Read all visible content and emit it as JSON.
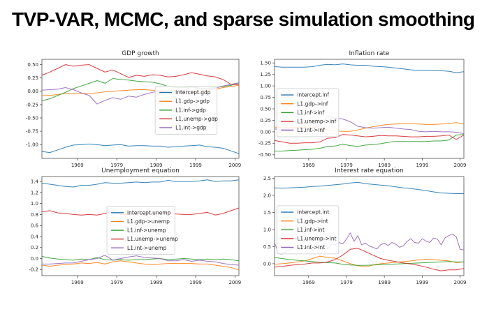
{
  "title": "TVP-VAR, MCMC, and sparse simulation smoothing",
  "colors": {
    "blue": "#1f77b4",
    "orange": "#ff7f0e",
    "green": "#2ca02c",
    "red": "#d62728",
    "purple": "#9467bd",
    "axis": "#4d4d4d",
    "tick_text": "#262626",
    "legend_border": "#cccccc",
    "background": "#ffffff"
  },
  "chart_data": [
    {
      "type": "line",
      "title": "GDP growth",
      "xlim": [
        1960,
        2010
      ],
      "xticks": [
        "1969",
        "1979",
        "1989",
        "1999",
        "2009"
      ],
      "x": [
        1960,
        1962,
        1964,
        1966,
        1968,
        1970,
        1972,
        1974,
        1976,
        1978,
        1980,
        1982,
        1984,
        1986,
        1988,
        1990,
        1992,
        1994,
        1996,
        1998,
        2000,
        2002,
        2004,
        2006,
        2008,
        2010
      ],
      "ylim": [
        -1.26,
        0.6
      ],
      "yticks": [
        0.5,
        0.25,
        0.0,
        -0.25,
        -0.5,
        -0.75,
        -1.0
      ],
      "ytick_labels": [
        "0.50",
        "0.25",
        "0.00",
        "-0.25",
        "-0.50",
        "-0.75",
        "-1.00"
      ],
      "grid": false,
      "legend": {
        "fx": 0.575,
        "fy": 0.27
      },
      "series": [
        {
          "name": "intercept.gdp",
          "color": "#1f77b4",
          "values": [
            -1.13,
            -1.15,
            -1.1,
            -1.05,
            -1.01,
            -1.0,
            -0.99,
            -1.0,
            -1.02,
            -1.01,
            -1.0,
            -1.03,
            -1.02,
            -1.02,
            -1.03,
            -1.03,
            -1.05,
            -1.04,
            -1.03,
            -1.02,
            -1.01,
            -1.04,
            -1.05,
            -1.07,
            -1.12,
            -1.17
          ]
        },
        {
          "name": "L1.gdp->gdp",
          "color": "#ff7f0e",
          "values": [
            -0.08,
            -0.08,
            -0.06,
            -0.04,
            -0.05,
            -0.04,
            -0.04,
            -0.03,
            -0.01,
            0.0,
            0.01,
            0.02,
            0.03,
            0.03,
            0.02,
            0.01,
            0.01,
            0.01,
            0.01,
            0.0,
            0.0,
            0.02,
            0.04,
            0.07,
            0.09,
            0.11
          ]
        },
        {
          "name": "L1.inf->gdp",
          "color": "#2ca02c",
          "values": [
            -0.18,
            -0.14,
            -0.08,
            -0.02,
            0.05,
            0.1,
            0.15,
            0.2,
            0.15,
            0.24,
            0.22,
            0.21,
            0.19,
            0.18,
            0.17,
            0.14,
            0.09,
            0.07,
            0.07,
            0.08,
            0.06,
            0.06,
            0.07,
            0.09,
            0.11,
            0.16
          ]
        },
        {
          "name": "L1.unemp->gdp",
          "color": "#d62728",
          "values": [
            0.3,
            0.36,
            0.43,
            0.5,
            0.47,
            0.49,
            0.5,
            0.43,
            0.36,
            0.4,
            0.33,
            0.26,
            0.3,
            0.28,
            0.31,
            0.3,
            0.27,
            0.28,
            0.31,
            0.35,
            0.32,
            0.29,
            0.27,
            0.22,
            0.13,
            0.12
          ]
        },
        {
          "name": "L1.int->gdp",
          "color": "#9467bd",
          "values": [
            0.02,
            0.03,
            0.04,
            0.07,
            0.03,
            -0.03,
            -0.08,
            -0.24,
            -0.17,
            -0.12,
            -0.15,
            -0.09,
            -0.11,
            -0.06,
            -0.02,
            0.0,
            -0.01,
            -0.01,
            0.01,
            0.09,
            0.04,
            0.04,
            0.06,
            0.1,
            0.13,
            0.16
          ]
        }
      ]
    },
    {
      "type": "line",
      "title": "Inflation rate",
      "xlim": [
        1960,
        2010
      ],
      "xticks": [
        "1969",
        "1979",
        "1989",
        "1999",
        "2009"
      ],
      "x": [
        1960,
        1962,
        1964,
        1966,
        1968,
        1970,
        1972,
        1974,
        1976,
        1978,
        1980,
        1982,
        1984,
        1986,
        1988,
        1990,
        1992,
        1994,
        1996,
        1998,
        2000,
        2002,
        2004,
        2006,
        2008,
        2010
      ],
      "ylim": [
        -0.58,
        1.58
      ],
      "yticks": [
        1.5,
        1.25,
        1.0,
        0.75,
        0.5,
        0.25,
        0.0,
        -0.25,
        -0.5
      ],
      "ytick_labels": [
        "1.50",
        "1.25",
        "1.00",
        "0.75",
        "0.50",
        "0.25",
        "0.00",
        "-0.25",
        "-0.50"
      ],
      "grid": false,
      "legend": {
        "fx": 0.012,
        "fy": 0.295
      },
      "series": [
        {
          "name": "intercept.inf",
          "color": "#1f77b4",
          "values": [
            1.42,
            1.41,
            1.41,
            1.41,
            1.41,
            1.42,
            1.45,
            1.47,
            1.46,
            1.48,
            1.46,
            1.45,
            1.45,
            1.43,
            1.42,
            1.41,
            1.39,
            1.37,
            1.35,
            1.34,
            1.34,
            1.33,
            1.33,
            1.32,
            1.29,
            1.31
          ]
        },
        {
          "name": "L1.gdp->inf",
          "color": "#ff7f0e",
          "values": [
            0.1,
            0.1,
            0.1,
            0.1,
            0.1,
            0.1,
            0.07,
            0.04,
            0.02,
            0.01,
            0.01,
            0.04,
            0.08,
            0.11,
            0.14,
            0.16,
            0.17,
            0.18,
            0.18,
            0.17,
            0.16,
            0.16,
            0.17,
            0.18,
            0.2,
            0.17
          ]
        },
        {
          "name": "L1.inf->inf",
          "color": "#2ca02c",
          "values": [
            -0.42,
            -0.42,
            -0.41,
            -0.4,
            -0.39,
            -0.38,
            -0.36,
            -0.32,
            -0.31,
            -0.27,
            -0.3,
            -0.32,
            -0.29,
            -0.28,
            -0.26,
            -0.23,
            -0.21,
            -0.21,
            -0.21,
            -0.21,
            -0.21,
            -0.2,
            -0.2,
            -0.18,
            -0.07,
            -0.06
          ]
        },
        {
          "name": "L1.unemp->inf",
          "color": "#d62728",
          "values": [
            -0.19,
            -0.22,
            -0.25,
            -0.25,
            -0.24,
            -0.24,
            -0.22,
            -0.14,
            -0.13,
            -0.06,
            -0.07,
            -0.09,
            -0.11,
            -0.1,
            -0.08,
            -0.09,
            -0.09,
            -0.1,
            -0.11,
            -0.11,
            -0.1,
            -0.1,
            -0.09,
            -0.07,
            -0.17,
            -0.07
          ]
        },
        {
          "name": "L1.int->inf",
          "color": "#9467bd",
          "values": [
            0.06,
            0.05,
            0.06,
            0.06,
            0.06,
            0.07,
            0.13,
            0.34,
            0.3,
            0.28,
            0.22,
            0.12,
            0.09,
            0.08,
            0.09,
            0.1,
            0.08,
            0.06,
            0.05,
            0.01,
            0.0,
            0.01,
            0.0,
            0.0,
            -0.01,
            -0.04
          ]
        }
      ]
    },
    {
      "type": "line",
      "title": "Unemployment equation",
      "xlim": [
        1960,
        2010
      ],
      "xticks": [
        "1969",
        "1979",
        "1989",
        "1999",
        "2009"
      ],
      "x": [
        1960,
        1962,
        1964,
        1966,
        1968,
        1970,
        1972,
        1974,
        1976,
        1978,
        1980,
        1982,
        1984,
        1986,
        1988,
        1990,
        1992,
        1994,
        1996,
        1998,
        2000,
        2002,
        2004,
        2006,
        2008,
        2010
      ],
      "ylim": [
        -0.31,
        1.49
      ],
      "yticks": [
        1.4,
        1.2,
        1.0,
        0.8,
        0.6,
        0.4,
        0.2,
        0.0,
        -0.2
      ],
      "ytick_labels": [
        "1.4",
        "1.2",
        "1.0",
        "0.8",
        "0.6",
        "0.4",
        "0.2",
        "0.0",
        "-0.2"
      ],
      "grid": false,
      "legend": {
        "fx": 0.33,
        "fy": 0.3
      },
      "series": [
        {
          "name": "intercept.unemp",
          "color": "#1f77b4",
          "values": [
            1.37,
            1.35,
            1.33,
            1.31,
            1.3,
            1.33,
            1.33,
            1.35,
            1.38,
            1.37,
            1.37,
            1.38,
            1.39,
            1.38,
            1.39,
            1.39,
            1.42,
            1.4,
            1.4,
            1.4,
            1.41,
            1.43,
            1.4,
            1.41,
            1.41,
            1.43
          ]
        },
        {
          "name": "L1.gdp->unemp",
          "color": "#ff7f0e",
          "values": [
            -0.12,
            -0.14,
            -0.12,
            -0.11,
            -0.1,
            -0.08,
            -0.09,
            -0.07,
            -0.1,
            -0.06,
            -0.04,
            -0.06,
            -0.08,
            -0.1,
            -0.11,
            -0.1,
            -0.09,
            -0.09,
            -0.09,
            -0.09,
            -0.1,
            -0.1,
            -0.12,
            -0.14,
            -0.16,
            -0.21
          ]
        },
        {
          "name": "L1.inf->unemp",
          "color": "#2ca02c",
          "values": [
            0.04,
            0.01,
            -0.01,
            -0.02,
            -0.03,
            -0.01,
            -0.02,
            0.02,
            -0.02,
            -0.03,
            -0.02,
            -0.03,
            -0.02,
            -0.02,
            -0.01,
            0.0,
            -0.02,
            -0.01,
            0.0,
            -0.01,
            -0.02,
            -0.01,
            -0.02,
            -0.01,
            -0.02,
            -0.04
          ]
        },
        {
          "name": "L1.unemp->unemp",
          "color": "#d62728",
          "values": [
            0.85,
            0.87,
            0.83,
            0.82,
            0.8,
            0.79,
            0.8,
            0.79,
            0.82,
            0.85,
            0.8,
            0.8,
            0.82,
            0.81,
            0.82,
            0.83,
            0.84,
            0.81,
            0.8,
            0.8,
            0.82,
            0.84,
            0.79,
            0.82,
            0.87,
            0.92
          ]
        },
        {
          "name": "L1.int->unemp",
          "color": "#9467bd",
          "values": [
            -0.1,
            -0.1,
            -0.09,
            -0.08,
            -0.08,
            -0.05,
            -0.02,
            0.0,
            0.06,
            -0.03,
            0.0,
            0.03,
            0.05,
            0.02,
            0.01,
            0.0,
            -0.04,
            -0.04,
            -0.02,
            -0.05,
            -0.03,
            -0.05,
            -0.06,
            -0.09,
            -0.11,
            -0.12
          ]
        }
      ]
    },
    {
      "type": "line",
      "title": "Interest rate equation",
      "xlim": [
        1960,
        2010
      ],
      "xticks": [
        "1969",
        "1979",
        "1989",
        "1999",
        "2009"
      ],
      "x": [
        1960,
        1962,
        1964,
        1966,
        1968,
        1970,
        1972,
        1974,
        1976,
        1978,
        1980,
        1982,
        1984,
        1986,
        1988,
        1990,
        1992,
        1994,
        1996,
        1998,
        2000,
        2002,
        2004,
        2006,
        2008,
        2010
      ],
      "ylim": [
        -0.35,
        2.55
      ],
      "yticks": [
        2.5,
        2.0,
        1.5,
        1.0,
        0.5,
        0.0
      ],
      "ytick_labels": [
        "2.5",
        "2.0",
        "1.5",
        "1.0",
        "0.5",
        "0.0"
      ],
      "grid": false,
      "legend": {
        "fx": 0.012,
        "fy": 0.295
      },
      "series": [
        {
          "name": "intercept.int",
          "color": "#1f77b4",
          "values": [
            2.22,
            2.21,
            2.22,
            2.23,
            2.24,
            2.26,
            2.27,
            2.29,
            2.31,
            2.33,
            2.36,
            2.38,
            2.34,
            2.32,
            2.3,
            2.28,
            2.25,
            2.22,
            2.2,
            2.17,
            2.14,
            2.1,
            2.07,
            2.06,
            2.05,
            2.05
          ]
        },
        {
          "name": "L1.gdp->int",
          "color": "#ff7f0e",
          "values": [
            -0.02,
            0.0,
            0.02,
            0.05,
            0.08,
            0.15,
            0.22,
            0.18,
            0.16,
            0.08,
            0.0,
            -0.06,
            -0.1,
            -0.04,
            0.0,
            0.02,
            0.04,
            0.06,
            0.08,
            0.11,
            0.13,
            0.12,
            0.1,
            0.08,
            0.03,
            0.05
          ]
        },
        {
          "name": "L1.inf->int",
          "color": "#2ca02c",
          "values": [
            0.18,
            0.15,
            0.12,
            0.1,
            0.08,
            0.06,
            0.04,
            0.03,
            0.02,
            -0.02,
            -0.04,
            -0.05,
            -0.05,
            -0.04,
            -0.03,
            -0.02,
            -0.01,
            0.0,
            0.01,
            0.02,
            0.03,
            0.04,
            0.05,
            0.06,
            0.05,
            0.05
          ]
        },
        {
          "name": "L1.unemp->int",
          "color": "#d62728",
          "values": [
            -0.1,
            -0.08,
            -0.05,
            -0.03,
            -0.01,
            0.02,
            0.02,
            0.05,
            0.12,
            0.25,
            0.42,
            0.45,
            0.35,
            0.25,
            0.15,
            0.1,
            0.06,
            0.02,
            -0.01,
            -0.05,
            -0.1,
            -0.16,
            -0.21,
            -0.18,
            -0.18,
            -0.14
          ]
        },
        {
          "name": "L1.int->int",
          "color": "#9467bd",
          "x": [
            1960,
            1961,
            1962,
            1963,
            1964,
            1965,
            1966,
            1967,
            1968,
            1969,
            1970,
            1971,
            1972,
            1973,
            1974,
            1975,
            1976,
            1977,
            1978,
            1979,
            1980,
            1981,
            1982,
            1983,
            1984,
            1985,
            1986,
            1987,
            1988,
            1989,
            1990,
            1991,
            1992,
            1993,
            1994,
            1995,
            1996,
            1997,
            1998,
            1999,
            2000,
            2001,
            2002,
            2003,
            2004,
            2005,
            2006,
            2007,
            2008,
            2009,
            2010
          ],
          "values": [
            0.62,
            0.3,
            0.28,
            0.35,
            0.4,
            0.44,
            0.47,
            0.49,
            0.5,
            0.45,
            0.42,
            0.48,
            0.5,
            0.6,
            0.42,
            0.58,
            0.55,
            0.62,
            0.58,
            0.72,
            0.9,
            0.65,
            0.82,
            0.55,
            0.6,
            0.52,
            0.48,
            0.43,
            0.55,
            0.6,
            0.53,
            0.62,
            0.57,
            0.48,
            0.52,
            0.65,
            0.73,
            0.62,
            0.6,
            0.73,
            0.66,
            0.62,
            0.75,
            0.72,
            0.55,
            0.75,
            0.82,
            0.87,
            0.78,
            0.42,
            0.4
          ]
        }
      ]
    }
  ]
}
